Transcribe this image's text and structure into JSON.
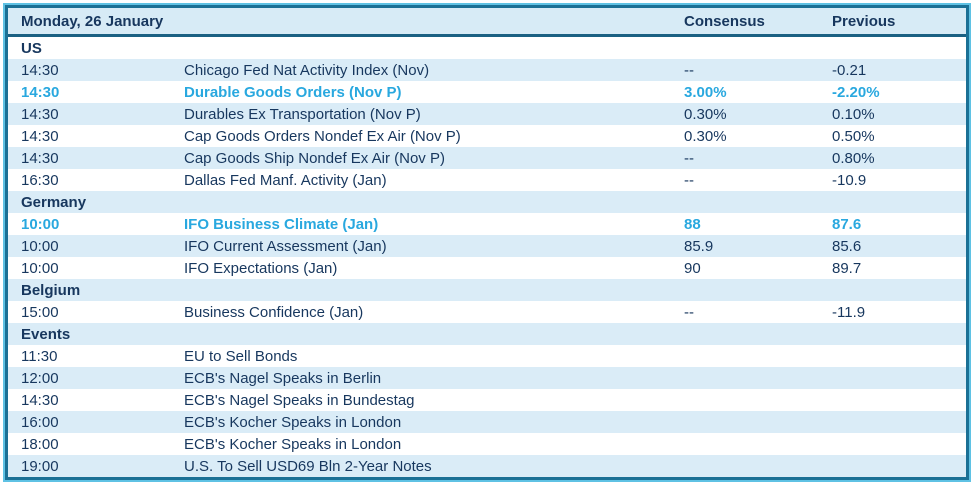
{
  "table": {
    "title": "Monday, 26 January",
    "columns": {
      "consensus": "Consensus",
      "previous": "Previous"
    },
    "rows": [
      {
        "type": "section",
        "label": "US"
      },
      {
        "type": "data",
        "time": "14:30",
        "event": "Chicago Fed Nat Activity Index (Nov)",
        "consensus": "--",
        "previous": "-0.21",
        "highlight": false
      },
      {
        "type": "data",
        "time": "14:30",
        "event": "Durable Goods Orders (Nov P)",
        "consensus": "3.00%",
        "previous": "-2.20%",
        "highlight": true
      },
      {
        "type": "data",
        "time": "14:30",
        "event": "Durables Ex Transportation (Nov P)",
        "consensus": "0.30%",
        "previous": "0.10%",
        "highlight": false
      },
      {
        "type": "data",
        "time": "14:30",
        "event": "Cap Goods Orders Nondef Ex Air (Nov P)",
        "consensus": "0.30%",
        "previous": "0.50%",
        "highlight": false
      },
      {
        "type": "data",
        "time": "14:30",
        "event": "Cap Goods Ship Nondef Ex Air (Nov P)",
        "consensus": "--",
        "previous": "0.80%",
        "highlight": false
      },
      {
        "type": "data",
        "time": "16:30",
        "event": "Dallas Fed Manf. Activity (Jan)",
        "consensus": "--",
        "previous": "-10.9",
        "highlight": false
      },
      {
        "type": "section",
        "label": "Germany"
      },
      {
        "type": "data",
        "time": "10:00",
        "event": "IFO Business Climate (Jan)",
        "consensus": "88",
        "previous": "87.6",
        "highlight": true
      },
      {
        "type": "data",
        "time": "10:00",
        "event": "IFO Current Assessment (Jan)",
        "consensus": "85.9",
        "previous": "85.6",
        "highlight": false
      },
      {
        "type": "data",
        "time": "10:00",
        "event": "IFO Expectations (Jan)",
        "consensus": "90",
        "previous": "89.7",
        "highlight": false
      },
      {
        "type": "section",
        "label": "Belgium"
      },
      {
        "type": "data",
        "time": "15:00",
        "event": "Business Confidence (Jan)",
        "consensus": "--",
        "previous": "-11.9",
        "highlight": false
      },
      {
        "type": "section",
        "label": "Events"
      },
      {
        "type": "data",
        "time": "11:30",
        "event": "EU to Sell Bonds",
        "consensus": "",
        "previous": "",
        "highlight": false
      },
      {
        "type": "data",
        "time": "12:00",
        "event": "ECB's Nagel Speaks in Berlin",
        "consensus": "",
        "previous": "",
        "highlight": false
      },
      {
        "type": "data",
        "time": "14:30",
        "event": "ECB's Nagel Speaks in Bundestag",
        "consensus": "",
        "previous": "",
        "highlight": false
      },
      {
        "type": "data",
        "time": "16:00",
        "event": "ECB's Kocher Speaks in London",
        "consensus": "",
        "previous": "",
        "highlight": false
      },
      {
        "type": "data",
        "time": "18:00",
        "event": "ECB's Kocher Speaks in London",
        "consensus": "",
        "previous": "",
        "highlight": false
      },
      {
        "type": "data",
        "time": "19:00",
        "event": "U.S. To Sell USD69 Bln 2-Year Notes",
        "consensus": "",
        "previous": "",
        "highlight": false
      }
    ]
  },
  "colors": {
    "text_navy": "#17375e",
    "highlight_cyan": "#29a8df",
    "row_shade": "#daecf7",
    "border_teal": "#1b7095",
    "border_cyan": "#5fc2e4"
  }
}
